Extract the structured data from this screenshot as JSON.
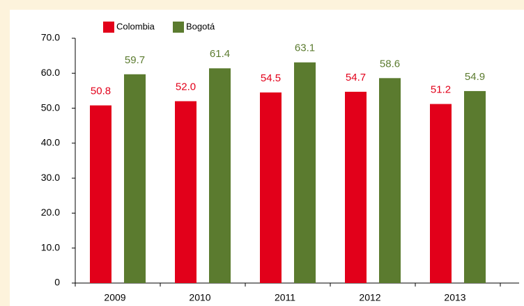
{
  "chart_data": {
    "type": "bar",
    "categories": [
      "2009",
      "2010",
      "2011",
      "2012",
      "2013"
    ],
    "series": [
      {
        "name": "Colombia",
        "color": "#e2001a",
        "values": [
          50.8,
          52.0,
          54.5,
          54.7,
          51.2
        ],
        "value_labels": [
          "50.8",
          "52.0",
          "54.5",
          "54.7",
          "51.2"
        ]
      },
      {
        "name": "Bogotá",
        "color": "#5b7b2f",
        "values": [
          59.7,
          61.4,
          63.1,
          58.6,
          54.9
        ],
        "value_labels": [
          "59.7",
          "61.4",
          "63.1",
          "58.6",
          "54.9"
        ]
      }
    ],
    "ylim": [
      0,
      70
    ],
    "yticks": [
      0,
      {
        "value": 10,
        "label": "10.0"
      },
      {
        "value": 20,
        "label": "20.0"
      },
      {
        "value": 30,
        "label": "30.0"
      },
      {
        "value": 40,
        "label": "40.0"
      },
      {
        "value": 50,
        "label": "50.0"
      },
      {
        "value": 60,
        "label": "60.0"
      },
      {
        "value": 70,
        "label": "70.0"
      }
    ],
    "legend": "top-left"
  }
}
